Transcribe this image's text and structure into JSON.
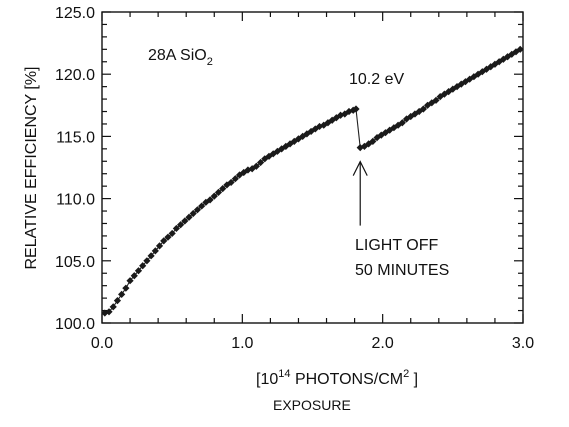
{
  "chart_data": {
    "type": "scatter",
    "title": "",
    "sample_label": {
      "main": "28A SiO",
      "sub": "2"
    },
    "energy_label": "10.2 eV",
    "annotation": {
      "line1": "LIGHT OFF",
      "line2": "50 MINUTES"
    },
    "ylabel": "RELATIVE EFFICIENCY [%]",
    "xlabel": {
      "line1_prefix": "[10",
      "line1_exp": "14",
      "line1_mid": " PHOTONS/CM",
      "line1_exp2": "2",
      "line1_suffix": " ]",
      "line2": "EXPOSURE"
    },
    "xlim": [
      0.0,
      3.0
    ],
    "ylim": [
      100.0,
      125.0
    ],
    "xticks": [
      "0.0",
      "1.0",
      "2.0",
      "3.0"
    ],
    "yticks": [
      "100.0",
      "105.0",
      "110.0",
      "115.0",
      "120.0",
      "125.0"
    ],
    "grid": false,
    "series": [
      {
        "values": [
          [
            0.02,
            100.8
          ],
          [
            0.05,
            100.9
          ],
          [
            0.08,
            101.3
          ],
          [
            0.11,
            101.8
          ],
          [
            0.14,
            102.3
          ],
          [
            0.17,
            102.8
          ],
          [
            0.2,
            103.4
          ],
          [
            0.23,
            103.8
          ],
          [
            0.26,
            104.2
          ],
          [
            0.29,
            104.6
          ],
          [
            0.32,
            105.0
          ],
          [
            0.35,
            105.4
          ],
          [
            0.38,
            105.8
          ],
          [
            0.41,
            106.2
          ],
          [
            0.44,
            106.6
          ],
          [
            0.47,
            106.9
          ],
          [
            0.5,
            107.2
          ],
          [
            0.53,
            107.6
          ],
          [
            0.56,
            107.9
          ],
          [
            0.59,
            108.2
          ],
          [
            0.62,
            108.5
          ],
          [
            0.65,
            108.8
          ],
          [
            0.68,
            109.1
          ],
          [
            0.71,
            109.4
          ],
          [
            0.74,
            109.7
          ],
          [
            0.77,
            109.9
          ],
          [
            0.8,
            110.2
          ],
          [
            0.83,
            110.5
          ],
          [
            0.86,
            110.8
          ],
          [
            0.89,
            111.1
          ],
          [
            0.92,
            111.3
          ],
          [
            0.95,
            111.6
          ],
          [
            0.98,
            111.9
          ],
          [
            1.01,
            112.1
          ],
          [
            1.04,
            112.3
          ],
          [
            1.07,
            112.4
          ],
          [
            1.1,
            112.6
          ],
          [
            1.13,
            112.9
          ],
          [
            1.16,
            113.2
          ],
          [
            1.19,
            113.4
          ],
          [
            1.22,
            113.6
          ],
          [
            1.25,
            113.8
          ],
          [
            1.28,
            114.0
          ],
          [
            1.31,
            114.2
          ],
          [
            1.34,
            114.4
          ],
          [
            1.37,
            114.6
          ],
          [
            1.4,
            114.8
          ],
          [
            1.43,
            115.0
          ],
          [
            1.46,
            115.2
          ],
          [
            1.49,
            115.4
          ],
          [
            1.52,
            115.6
          ],
          [
            1.55,
            115.8
          ],
          [
            1.58,
            115.9
          ],
          [
            1.61,
            116.1
          ],
          [
            1.64,
            116.3
          ],
          [
            1.67,
            116.5
          ],
          [
            1.7,
            116.7
          ],
          [
            1.73,
            116.8
          ],
          [
            1.76,
            117.0
          ],
          [
            1.79,
            117.1
          ],
          [
            1.81,
            117.2
          ]
        ]
      },
      {
        "values": [
          [
            1.84,
            114.1
          ],
          [
            1.87,
            114.2
          ],
          [
            1.9,
            114.4
          ],
          [
            1.93,
            114.6
          ],
          [
            1.96,
            114.9
          ],
          [
            1.99,
            115.1
          ],
          [
            2.02,
            115.3
          ],
          [
            2.05,
            115.5
          ],
          [
            2.08,
            115.7
          ],
          [
            2.11,
            115.9
          ],
          [
            2.14,
            116.1
          ],
          [
            2.17,
            116.4
          ],
          [
            2.2,
            116.6
          ],
          [
            2.23,
            116.8
          ],
          [
            2.26,
            117.0
          ],
          [
            2.29,
            117.2
          ],
          [
            2.32,
            117.5
          ],
          [
            2.35,
            117.7
          ],
          [
            2.38,
            117.9
          ],
          [
            2.41,
            118.2
          ],
          [
            2.44,
            118.4
          ],
          [
            2.47,
            118.6
          ],
          [
            2.5,
            118.8
          ],
          [
            2.53,
            119.0
          ],
          [
            2.56,
            119.2
          ],
          [
            2.59,
            119.4
          ],
          [
            2.62,
            119.6
          ],
          [
            2.65,
            119.8
          ],
          [
            2.68,
            120.0
          ],
          [
            2.71,
            120.2
          ],
          [
            2.74,
            120.4
          ],
          [
            2.77,
            120.6
          ],
          [
            2.8,
            120.8
          ],
          [
            2.83,
            121.0
          ],
          [
            2.86,
            121.2
          ],
          [
            2.89,
            121.4
          ],
          [
            2.92,
            121.6
          ],
          [
            2.95,
            121.8
          ],
          [
            2.98,
            122.0
          ]
        ]
      }
    ],
    "drop": {
      "from": [
        1.81,
        117.2
      ],
      "to": [
        1.84,
        114.1
      ]
    },
    "arrow_points_to": [
      1.84,
      114.1
    ]
  }
}
